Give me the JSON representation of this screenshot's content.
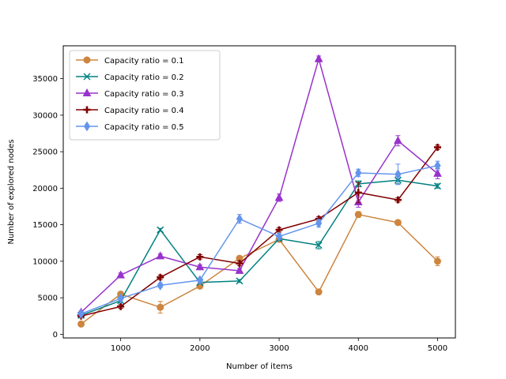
{
  "chart_data": {
    "type": "line",
    "xlabel": "Number of items",
    "ylabel": "Number of explored nodes",
    "xlim": [
      275,
      5225
    ],
    "ylim": [
      -500,
      39500
    ],
    "xticks": [
      1000,
      2000,
      3000,
      4000,
      5000
    ],
    "yticks": [
      0,
      5000,
      10000,
      15000,
      20000,
      25000,
      30000,
      35000
    ],
    "grid": false,
    "legend_position": "top-left",
    "x": [
      500,
      1000,
      1500,
      2000,
      2500,
      3000,
      3500,
      4000,
      4500,
      5000
    ],
    "series": [
      {
        "name": "Capacity ratio = 0.1",
        "color": "#cd853f",
        "marker": "circle",
        "values": [
          1400,
          5500,
          3700,
          6600,
          10400,
          13000,
          5800,
          16400,
          15300,
          10000
        ],
        "errors": [
          250,
          300,
          800,
          300,
          300,
          300,
          250,
          400,
          300,
          600
        ]
      },
      {
        "name": "Capacity ratio = 0.2",
        "color": "#008080",
        "marker": "x",
        "values": [
          2600,
          4600,
          14300,
          7100,
          7300,
          13100,
          12200,
          20600,
          21100,
          20300
        ],
        "errors": [
          200,
          250,
          200,
          200,
          200,
          300,
          500,
          400,
          500,
          300
        ]
      },
      {
        "name": "Capacity ratio = 0.3",
        "color": "#9932cc",
        "marker": "triangle",
        "values": [
          3000,
          8100,
          10700,
          9200,
          8700,
          18700,
          37700,
          18100,
          26500,
          22000
        ],
        "errors": [
          200,
          300,
          300,
          300,
          300,
          500,
          400,
          700,
          700,
          700
        ]
      },
      {
        "name": "Capacity ratio = 0.4",
        "color": "#800000",
        "marker": "plus",
        "values": [
          2500,
          3800,
          7800,
          10600,
          9700,
          14300,
          15800,
          19400,
          18400,
          25600
        ],
        "errors": [
          200,
          250,
          300,
          300,
          300,
          300,
          300,
          1400,
          300,
          300
        ]
      },
      {
        "name": "Capacity ratio = 0.5",
        "color": "#6495ed",
        "marker": "diamond",
        "values": [
          2800,
          4900,
          6700,
          7400,
          15800,
          13400,
          15200,
          22100,
          21900,
          23100
        ],
        "errors": [
          200,
          300,
          300,
          300,
          600,
          400,
          500,
          500,
          1400,
          600
        ]
      }
    ]
  }
}
